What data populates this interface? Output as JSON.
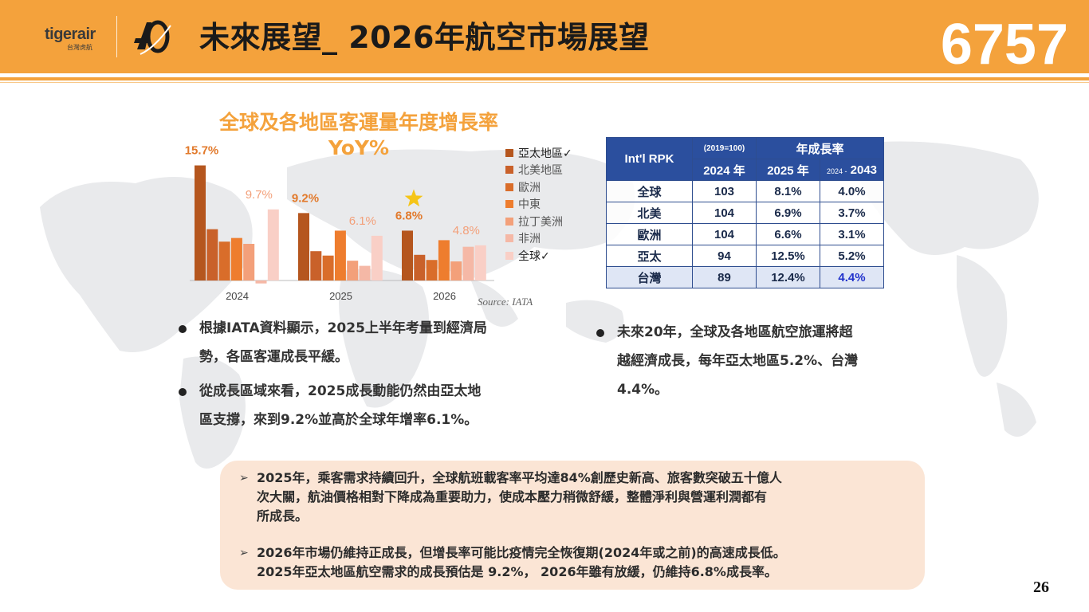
{
  "header": {
    "logo_text": "tigerair",
    "logo_sub": "台灣虎航",
    "title": "未來展望_ 2026年航空市場展望",
    "stock_code": "6757"
  },
  "chart": {
    "title_line1": "全球及各地區客運量年度增長率",
    "title_line2": "YoY%",
    "source": "Source: IATA"
  },
  "chart_data": {
    "type": "bar",
    "categories": [
      "2024",
      "2025",
      "2026"
    ],
    "series": [
      {
        "name": "亞太地區✓",
        "color": "#b5561e",
        "values": [
          15.7,
          9.2,
          6.8
        ]
      },
      {
        "name": "北美地區",
        "color": "#c9612a",
        "values": [
          7.0,
          4.0,
          3.5
        ]
      },
      {
        "name": "歐洲",
        "color": "#d96d2a",
        "values": [
          5.3,
          3.4,
          2.8
        ]
      },
      {
        "name": "中東",
        "color": "#ee7d2e",
        "values": [
          5.8,
          6.8,
          5.5
        ]
      },
      {
        "name": "拉丁美洲",
        "color": "#f3a07a",
        "values": [
          5.0,
          2.7,
          2.6
        ]
      },
      {
        "name": "非洲",
        "color": "#f5b8a6",
        "values": [
          -0.4,
          2.0,
          4.6
        ]
      },
      {
        "name": "全球✓",
        "color": "#f9cfc6",
        "values": [
          9.7,
          6.1,
          4.8
        ]
      }
    ],
    "data_labels": [
      {
        "category": "2024",
        "series": "亞太地區✓",
        "text": "15.7%"
      },
      {
        "category": "2024",
        "series": "全球✓",
        "text": "9.7%"
      },
      {
        "category": "2025",
        "series": "亞太地區✓",
        "text": "9.2%"
      },
      {
        "category": "2025",
        "series": "全球✓",
        "text": "6.1%"
      },
      {
        "category": "2026",
        "series": "亞太地區✓",
        "text": "6.8%"
      },
      {
        "category": "2026",
        "series": "全球✓",
        "text": "4.8%"
      }
    ],
    "ylim": [
      -0.5,
      16
    ],
    "grid": false,
    "legend_placement": "right",
    "star_marker_category": "2026"
  },
  "table": {
    "header_main": "Int'l RPK",
    "header_base": "(2019=100)",
    "header_growth": "年成長率",
    "col_2024": "2024 年",
    "col_2025": "2025 年",
    "col_range_small": "2024 -",
    "col_range_big": "2043",
    "rows": [
      {
        "region": "全球",
        "v2024": "103",
        "g2025": "8.1%",
        "g2043": "4.0%"
      },
      {
        "region": "北美",
        "v2024": "104",
        "g2025": "6.9%",
        "g2043": "3.7%"
      },
      {
        "region": "歐洲",
        "v2024": "104",
        "g2025": "6.6%",
        "g2043": "3.1%"
      },
      {
        "region": "亞太",
        "v2024": "94",
        "g2025": "12.5%",
        "g2043": "5.2%"
      },
      {
        "region": "台灣",
        "v2024": "89",
        "g2025": "12.4%",
        "g2043": "4.4%"
      }
    ]
  },
  "bullets": {
    "left1_line1": "根據IATA資料顯示，2025上半年考量到經濟局",
    "left1_line2": "勢，各區客運成長平緩。",
    "left2_line1": "從成長區域來看，2025成長動能仍然由亞太地",
    "left2_line2": "區支撐，來到9.2%並高於全球年增率6.1%。",
    "right1_line1": "未來20年，全球及各地區航空旅運將超",
    "right1_line2": "越經濟成長，每年亞太地區5.2%、台灣",
    "right1_line3": "4.4%。"
  },
  "notes": {
    "n1_line1": "2025年，乘客需求持續回升，全球航班載客率平均達84%創歷史新高、旅客數突破五十億人",
    "n1_line2": "次大關，航油價格相對下降成為重要助力，使成本壓力稍微舒緩，整體淨利與營運利潤都有",
    "n1_line3": "所成長。",
    "n2_line1": "2026年市場仍維持正成長，但增長率可能比疫情完全恢復期(2024年或之前)的高速成長低。",
    "n2_line2": "2025年亞太地區航空需求的成長預估是 9.2%， 2026年雖有放緩，仍維持6.8%成長率。",
    "arrow": "➢"
  },
  "page_number": "26",
  "colors": {
    "accent": "#f4a23c",
    "table_header": "#2b4f9e"
  }
}
